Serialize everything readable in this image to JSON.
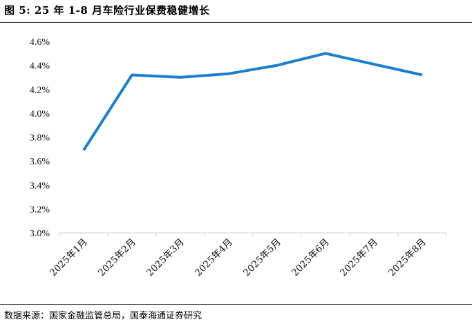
{
  "title": "图 5:   25 年 1-8 月车险行业保费稳健增长",
  "source": "数据来源：国家金融监管总局，国泰海通证券研究",
  "chart_data": {
    "type": "line",
    "categories": [
      "2025年1月",
      "2025年2月",
      "2025年3月",
      "2025年4月",
      "2025年5月",
      "2025年6月",
      "2025年7月",
      "2025年8月"
    ],
    "series": [
      {
        "values": [
          3.69,
          4.32,
          4.3,
          4.33,
          4.4,
          4.5,
          4.41,
          4.32
        ],
        "color": "#1a7fd0"
      }
    ],
    "ylim": [
      3.0,
      4.6
    ],
    "yticks": [
      "3.0%",
      "3.2%",
      "3.4%",
      "3.6%",
      "3.8%",
      "4.0%",
      "4.2%",
      "4.4%",
      "4.6%"
    ],
    "ytick_values": [
      3.0,
      3.2,
      3.4,
      3.6,
      3.8,
      4.0,
      4.2,
      4.4,
      4.6
    ],
    "grid": false,
    "legend": "none",
    "axis_color": "#d9d9d9"
  }
}
